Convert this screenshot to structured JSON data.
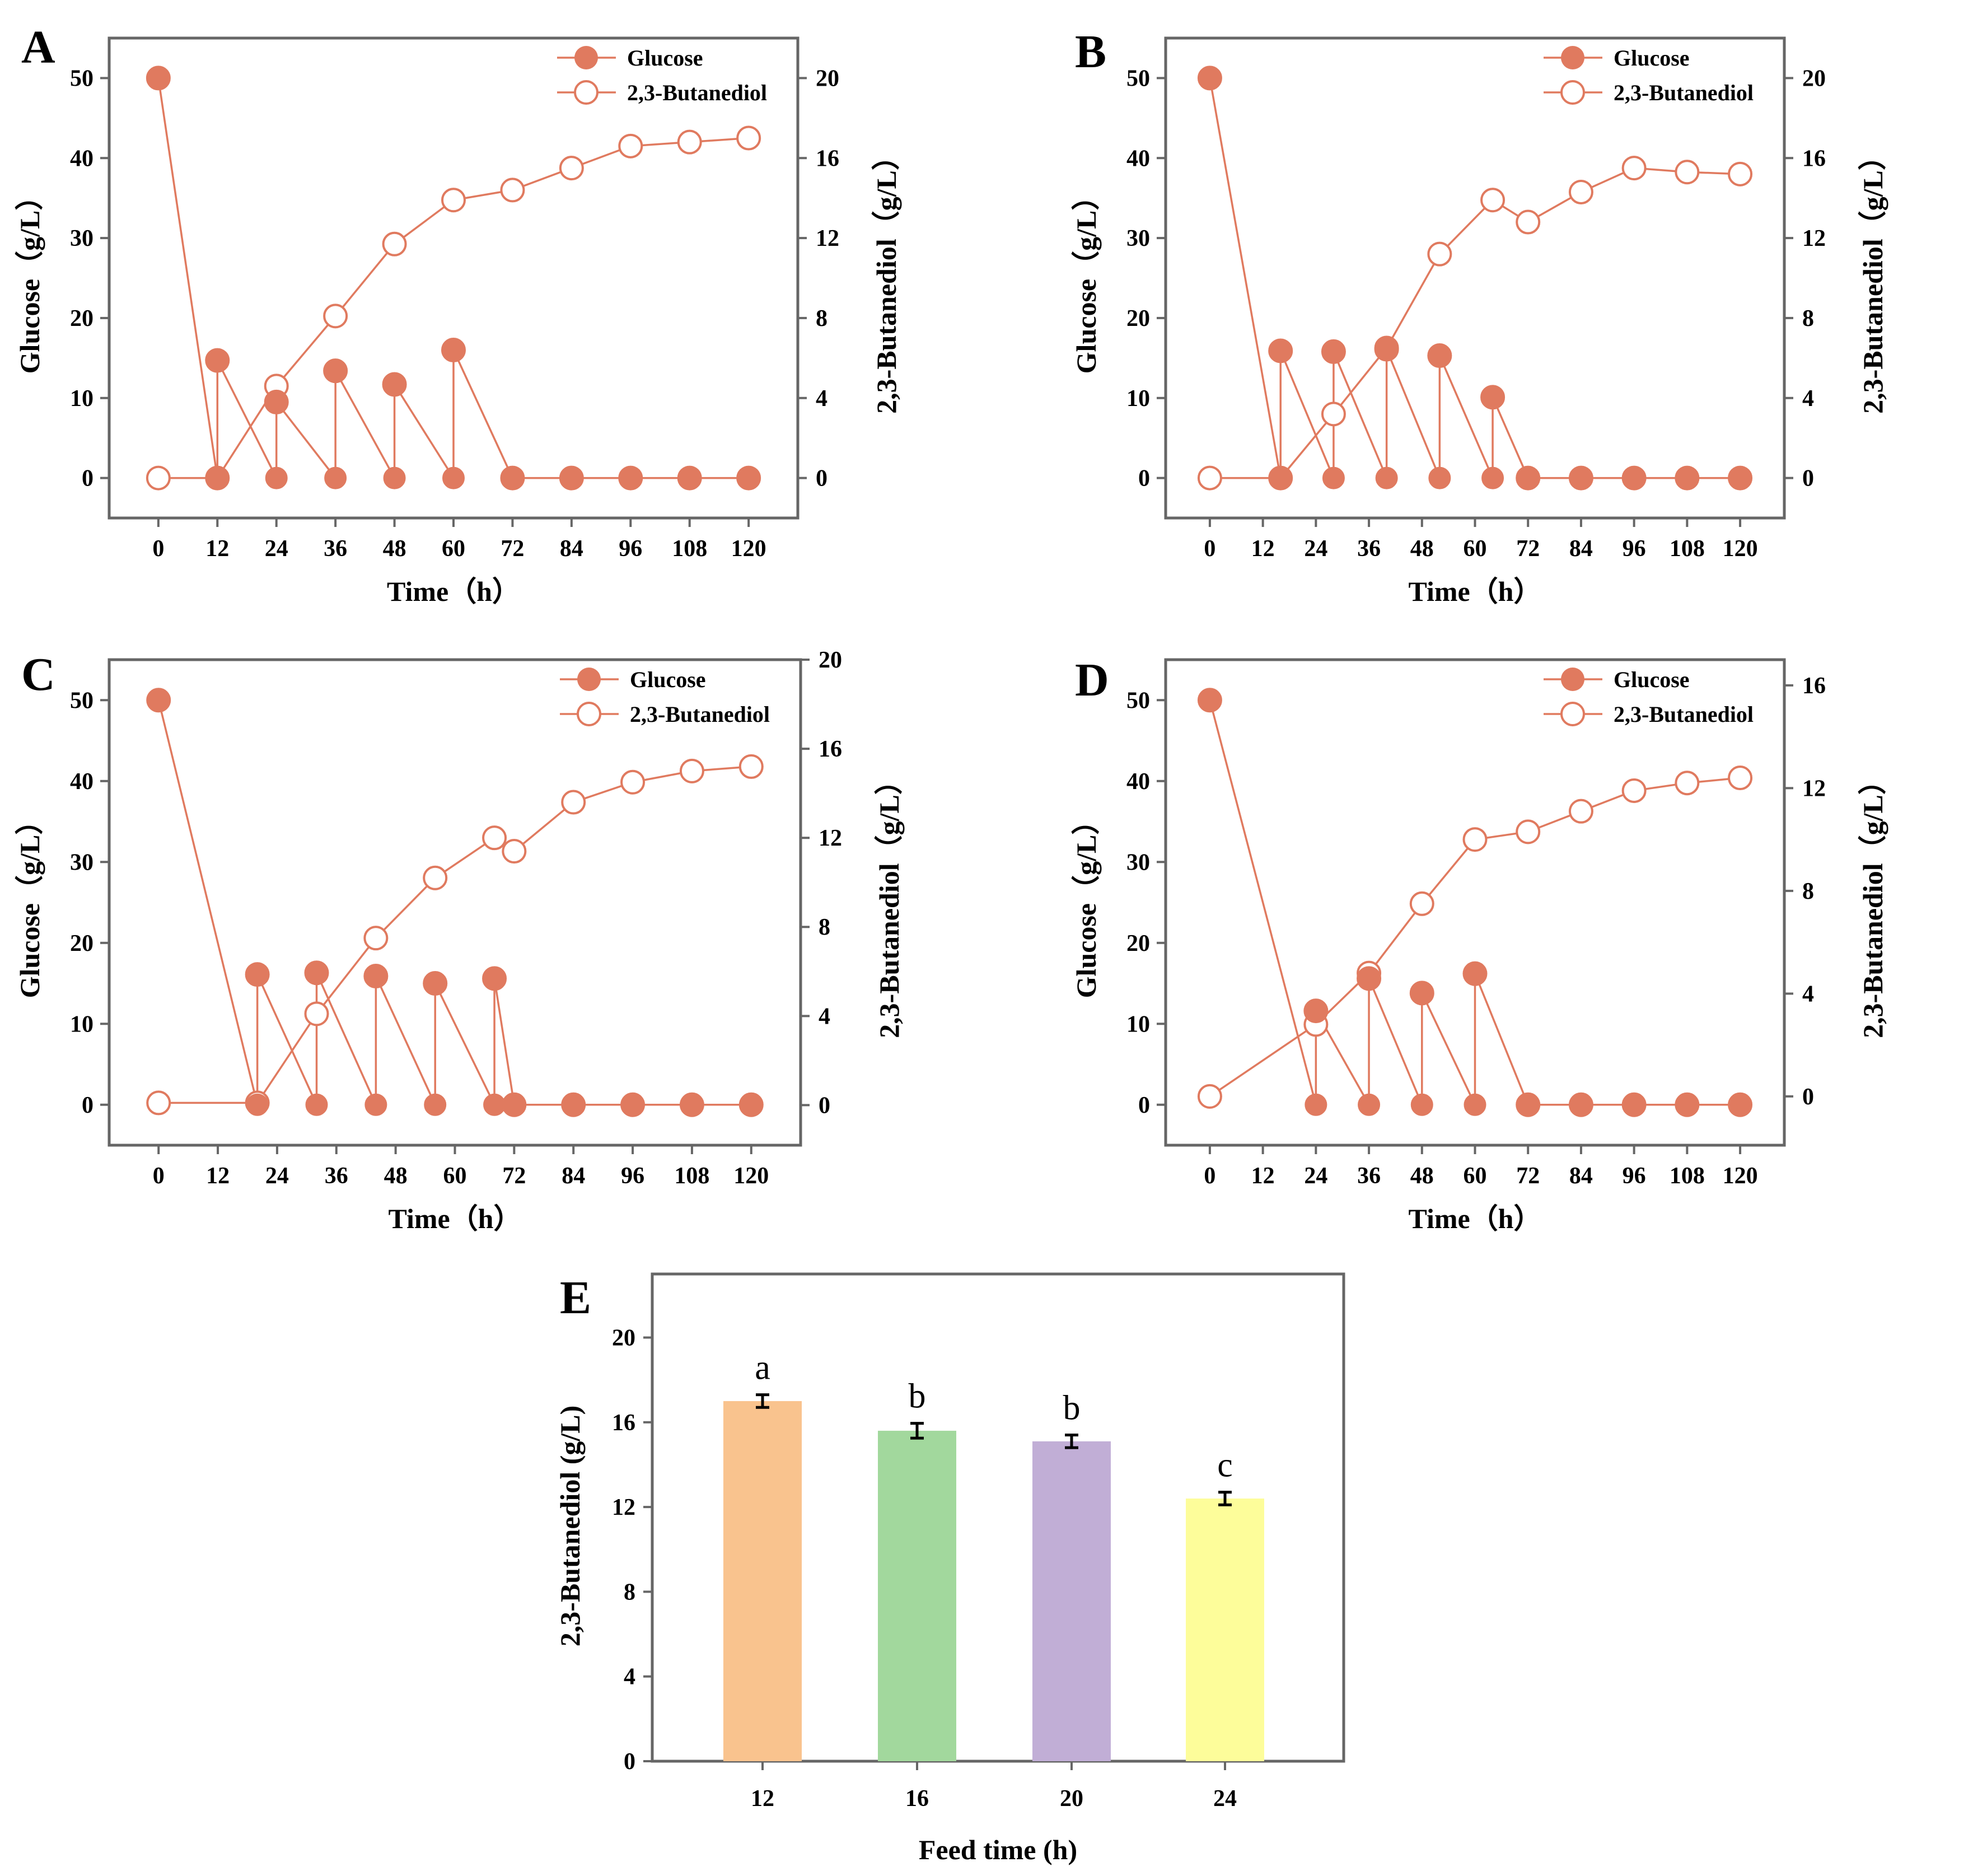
{
  "colors": {
    "glucose": "#e07a5f",
    "butanediol": "#e07a5f",
    "axis": "#666666",
    "bar_12": "#f9c38e",
    "bar_16": "#a2d89d",
    "bar_20": "#c1aed6",
    "bar_24": "#fdfd9a"
  },
  "chart_data": [
    {
      "type": "line",
      "panel": "A",
      "xlabel": "Time（h）",
      "ylabel": "Glucose（g/L）",
      "y2label": "2,3-Butanediol（g/L）",
      "x_ticks": [
        "0",
        "12",
        "24",
        "36",
        "48",
        "60",
        "72",
        "84",
        "96",
        "108",
        "120"
      ],
      "y_ticks": [
        "0",
        "10",
        "20",
        "30",
        "40",
        "50"
      ],
      "y2_ticks": [
        "0",
        "4",
        "8",
        "12",
        "16",
        "20"
      ],
      "xlim": [
        -10,
        130
      ],
      "ylim": [
        -5,
        55
      ],
      "y2lim": [
        -2,
        22
      ],
      "legend": [
        "Glucose",
        "2,3-Butanediol"
      ],
      "series": [
        {
          "name": "Glucose",
          "axis": "left",
          "x": [
            0,
            12,
            12,
            24,
            24,
            36,
            36,
            48,
            48,
            60,
            60,
            72,
            84,
            96,
            108,
            120
          ],
          "values": [
            50,
            0,
            14.7,
            0,
            9.5,
            0,
            13.4,
            0,
            11.7,
            0,
            16,
            0,
            0,
            0,
            0,
            0
          ]
        },
        {
          "name": "2,3-Butanediol",
          "axis": "right",
          "x": [
            0,
            12,
            24,
            36,
            48,
            60,
            72,
            84,
            96,
            108,
            120
          ],
          "values": [
            0,
            0,
            4.6,
            8.1,
            11.7,
            13.9,
            14.4,
            15.5,
            16.6,
            16.8,
            17.0
          ]
        }
      ]
    },
    {
      "type": "line",
      "panel": "B",
      "xlabel": "Time（h）",
      "ylabel": "Glucose（g/L）",
      "y2label": "2,3-Butanediol（g/L）",
      "x_ticks": [
        "0",
        "12",
        "24",
        "36",
        "48",
        "60",
        "72",
        "84",
        "96",
        "108",
        "120"
      ],
      "y_ticks": [
        "0",
        "10",
        "20",
        "30",
        "40",
        "50"
      ],
      "y2_ticks": [
        "0",
        "4",
        "8",
        "12",
        "16",
        "20"
      ],
      "xlim": [
        -10,
        130
      ],
      "ylim": [
        -5,
        55
      ],
      "y2lim": [
        -2,
        22
      ],
      "legend": [
        "Glucose",
        "2,3-Butanediol"
      ],
      "series": [
        {
          "name": "Glucose",
          "axis": "left",
          "x": [
            0,
            16,
            16,
            28,
            28,
            40,
            40,
            52,
            52,
            64,
            64,
            72,
            84,
            96,
            108,
            120
          ],
          "values": [
            50,
            0,
            15.9,
            0,
            15.8,
            0,
            16.1,
            0,
            15.3,
            0,
            10.1,
            0,
            0,
            0,
            0,
            0
          ]
        },
        {
          "name": "2,3-Butanediol",
          "axis": "right",
          "x": [
            0,
            16,
            28,
            40,
            52,
            64,
            72,
            84,
            96,
            108,
            120
          ],
          "values": [
            0,
            0,
            3.2,
            6.5,
            11.2,
            13.9,
            12.8,
            14.3,
            15.5,
            15.3,
            15.2
          ]
        }
      ]
    },
    {
      "type": "line",
      "panel": "C",
      "xlabel": "Time（h）",
      "ylabel": "Glucose（g/L）",
      "y2label": "2,3-Butanediol（g/L）",
      "x_ticks": [
        "0",
        "12",
        "24",
        "36",
        "48",
        "60",
        "72",
        "84",
        "96",
        "108",
        "120"
      ],
      "y_ticks": [
        "0",
        "10",
        "20",
        "30",
        "40",
        "50"
      ],
      "y2_ticks": [
        "0",
        "4",
        "8",
        "12",
        "16",
        "20"
      ],
      "xlim": [
        -10,
        130
      ],
      "ylim": [
        -5,
        55
      ],
      "y2lim": [
        -1.8,
        20
      ],
      "legend": [
        "Glucose",
        "2,3-Butanediol"
      ],
      "series": [
        {
          "name": "Glucose",
          "axis": "left",
          "x": [
            0,
            20,
            20,
            32,
            32,
            44,
            44,
            56,
            56,
            68,
            68,
            72,
            84,
            96,
            108,
            120
          ],
          "values": [
            50,
            0,
            16.1,
            0,
            16.3,
            0,
            15.9,
            0,
            15,
            0,
            15.6,
            0,
            0,
            0,
            0,
            0
          ]
        },
        {
          "name": "2,3-Butanediol",
          "axis": "right",
          "x": [
            0,
            20,
            32,
            44,
            56,
            68,
            72,
            84,
            96,
            108,
            120
          ],
          "values": [
            0.1,
            0.1,
            4.1,
            7.5,
            10.2,
            12,
            11.4,
            13.6,
            14.5,
            15.0,
            15.2
          ]
        }
      ]
    },
    {
      "type": "line",
      "panel": "D",
      "xlabel": "Time（h）",
      "ylabel": "Glucose（g/L）",
      "y2label": "2,3-Butanediol（g/L）",
      "x_ticks": [
        "0",
        "12",
        "24",
        "36",
        "48",
        "60",
        "72",
        "84",
        "96",
        "108",
        "120"
      ],
      "y_ticks": [
        "0",
        "10",
        "20",
        "30",
        "40",
        "50"
      ],
      "y2_ticks": [
        "0",
        "4",
        "8",
        "12",
        "16"
      ],
      "xlim": [
        -10,
        130
      ],
      "ylim": [
        -5,
        55
      ],
      "y2lim": [
        -1.9,
        17
      ],
      "legend": [
        "Glucose",
        "2,3-Butanediol"
      ],
      "series": [
        {
          "name": "Glucose",
          "axis": "left",
          "x": [
            0,
            24,
            24,
            36,
            36,
            48,
            48,
            60,
            60,
            72,
            84,
            96,
            108,
            120
          ],
          "values": [
            50,
            0,
            11.6,
            0,
            15.6,
            0,
            13.8,
            0,
            16.2,
            0,
            0,
            0,
            0,
            0
          ]
        },
        {
          "name": "2,3-Butanediol",
          "axis": "right",
          "x": [
            0,
            24,
            36,
            48,
            60,
            72,
            84,
            96,
            108,
            120
          ],
          "values": [
            0,
            2.8,
            4.8,
            7.5,
            10,
            10.3,
            11.1,
            11.9,
            12.2,
            12.4
          ]
        }
      ]
    },
    {
      "type": "bar",
      "panel": "E",
      "title": "",
      "xlabel": "Feed time (h)",
      "ylabel": "2,3-Butanediol (g/L)",
      "categories": [
        "12",
        "16",
        "20",
        "24"
      ],
      "values": [
        17.0,
        15.6,
        15.1,
        12.4
      ],
      "errors": [
        0.3,
        0.35,
        0.3,
        0.3
      ],
      "significance": [
        "a",
        "b",
        "b",
        "c"
      ],
      "y_ticks": [
        "0",
        "4",
        "8",
        "12",
        "16",
        "20"
      ],
      "ylim": [
        0,
        23
      ]
    }
  ]
}
